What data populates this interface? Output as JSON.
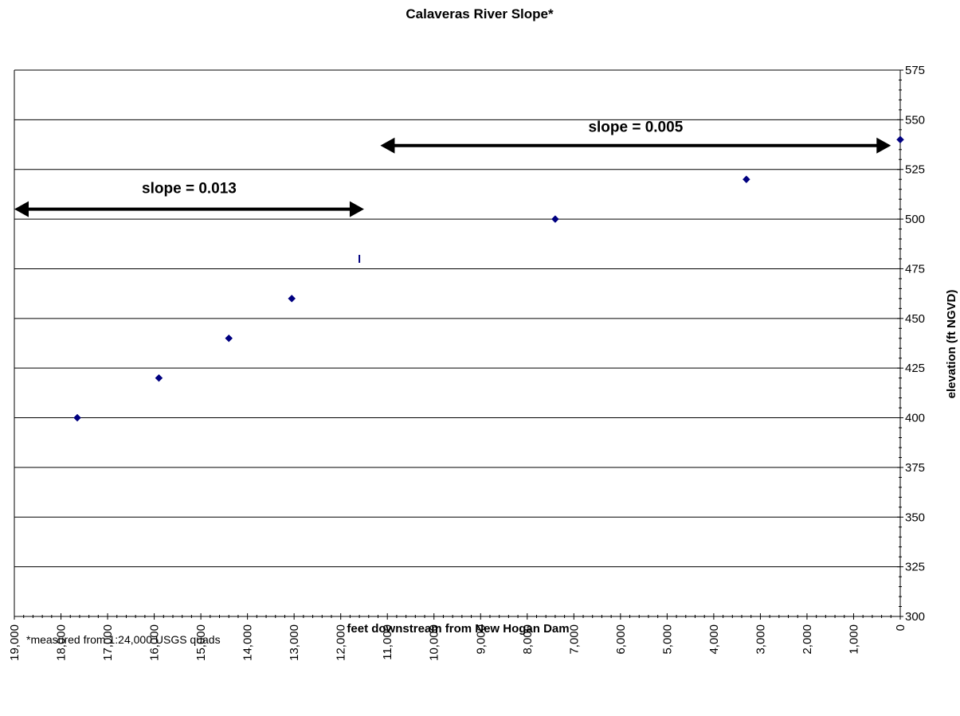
{
  "chart_data": {
    "type": "scatter",
    "title": "Calaveras River Slope*",
    "xlabel": "feet downstream from New Hogan Dam",
    "ylabel": "elevation (ft NGVD)",
    "xlim": [
      19000,
      0
    ],
    "ylim": [
      300,
      575
    ],
    "x_reversed": true,
    "y_axis_position": "right",
    "grid": "horizontal major gridlines",
    "legend": "none",
    "x_ticks": [
      19000,
      18000,
      17000,
      16000,
      15000,
      14000,
      13000,
      12000,
      11000,
      10000,
      9000,
      8000,
      7000,
      6000,
      5000,
      4000,
      3000,
      2000,
      1000,
      0
    ],
    "x_tick_labels": [
      "19,000",
      "18,000",
      "17,000",
      "16,000",
      "15,000",
      "14,000",
      "13,000",
      "12,000",
      "11,000",
      "10,000",
      "9,000",
      "8,000",
      "7,000",
      "6,000",
      "5,000",
      "4,000",
      "3,000",
      "2,000",
      "1,000",
      "0"
    ],
    "y_ticks": [
      300,
      325,
      350,
      375,
      400,
      425,
      450,
      475,
      500,
      525,
      550,
      575
    ],
    "y_tick_labels": [
      "300",
      "325",
      "350",
      "375",
      "400",
      "425",
      "450",
      "475",
      "500",
      "525",
      "550",
      "575"
    ],
    "series": [
      {
        "marker": "diamond",
        "color": "#000080",
        "x": [
          17650,
          15900,
          14400,
          13050,
          11600,
          7400,
          3300,
          0
        ],
        "y": [
          400,
          420,
          440,
          460,
          480,
          500,
          520,
          540
        ],
        "marker_shapes": [
          "diamond",
          "diamond",
          "diamond",
          "diamond",
          "dash",
          "diamond",
          "diamond",
          "diamond"
        ]
      }
    ],
    "annotations": [
      {
        "text": "slope = 0.013",
        "arrow_from_x": 19000,
        "arrow_to_x": 11500,
        "arrow_y": 505,
        "label_y": 513
      },
      {
        "text": "slope = 0.005",
        "arrow_from_x": 11150,
        "arrow_to_x": 200,
        "arrow_y": 537,
        "label_y": 544
      }
    ],
    "footnote": "*measured from 1:24,000 USGS quads"
  },
  "colors": {
    "marker": "#000080",
    "axis": "#000000",
    "grid": "#000000",
    "background": "#ffffff"
  }
}
